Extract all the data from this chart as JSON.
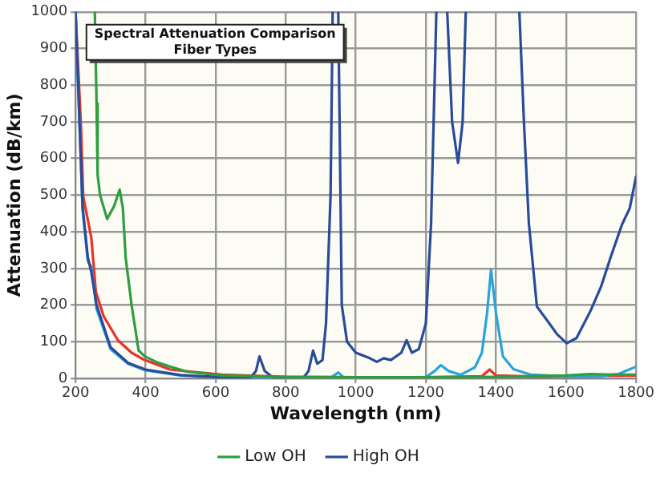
{
  "chart_data": {
    "type": "line",
    "title": "Spectral Attenuation Comparison",
    "subtitle": "Fiber Types",
    "xlabel": "Wavelength (nm)",
    "ylabel": "Attenuation (dB/km)",
    "xlim": [
      200,
      1800
    ],
    "xticks": [
      200,
      400,
      600,
      800,
      1000,
      1200,
      1400,
      1600,
      1800
    ],
    "ylim": [
      0,
      1000
    ],
    "yticks": [
      0,
      100,
      200,
      300,
      400,
      500,
      600,
      700,
      800,
      900,
      1000
    ],
    "grid": true,
    "legend": "bottom",
    "marker": "none",
    "line_style": "solid",
    "series": [
      {
        "name": "Low OH",
        "color": "#2e9e3e",
        "x": [
          255,
          260,
          263,
          270,
          290,
          310,
          326,
          335,
          343,
          360,
          380,
          398,
          430,
          470,
          520,
          618,
          800,
          1000,
          1200,
          1400,
          1600,
          1670,
          1750,
          1800
        ],
        "values": [
          1000,
          750,
          555,
          500,
          435,
          470,
          515,
          465,
          330,
          200,
          76,
          60,
          45,
          32,
          18,
          8,
          4,
          3,
          3,
          4,
          8,
          12,
          10,
          10
        ]
      },
      {
        "name": "High OH",
        "color": "#2a4a9a",
        "x": [
          200,
          220,
          235,
          245,
          260,
          300,
          350,
          400,
          500,
          600,
          700,
          715,
          725,
          740,
          760,
          800,
          850,
          865,
          878,
          890,
          905,
          915,
          928,
          934,
          942,
          950,
          960,
          975,
          1000,
          1040,
          1060,
          1080,
          1100,
          1130,
          1145,
          1160,
          1180,
          1200,
          1215,
          1230,
          1245,
          1261,
          1275,
          1292,
          1305,
          1314,
          1390,
          1467,
          1480,
          1494,
          1517,
          1548,
          1575,
          1602,
          1630,
          1670,
          1700,
          1728,
          1760,
          1782,
          1800
        ],
        "values": [
          1000,
          470,
          330,
          290,
          200,
          85,
          42,
          24,
          9,
          4,
          3,
          20,
          60,
          20,
          5,
          1,
          1,
          20,
          76,
          40,
          50,
          150,
          500,
          1000,
          null,
          1000,
          200,
          100,
          70,
          55,
          45,
          55,
          50,
          70,
          104,
          70,
          80,
          150,
          424,
          1000,
          null,
          1000,
          700,
          588,
          700,
          1000,
          null,
          1000,
          700,
          424,
          196,
          156,
          120,
          96,
          110,
          184,
          250,
          332,
          420,
          464,
          550
        ]
      },
      {
        "color": "#29a3dd",
        "x": [
          200,
          220,
          235,
          245,
          260,
          300,
          350,
          400,
          500,
          600,
          800,
          930,
          950,
          965,
          1000,
          1200,
          1225,
          1243,
          1265,
          1300,
          1340,
          1360,
          1375,
          1386,
          1400,
          1420,
          1450,
          1500,
          1600,
          1700,
          1750,
          1800
        ],
        "values": [
          1000,
          460,
          320,
          304,
          190,
          80,
          40,
          22,
          8,
          4,
          2,
          3,
          16,
          3,
          2,
          3,
          20,
          36,
          20,
          10,
          30,
          70,
          180,
          296,
          180,
          60,
          25,
          10,
          5,
          6,
          12,
          32
        ]
      },
      {
        "color": "#e8312a",
        "x": [
          200,
          215,
          222,
          231,
          245,
          258,
          280,
          321,
          360,
          393,
          470,
          618,
          800,
          1000,
          1200,
          1360,
          1382,
          1400,
          1500,
          1600,
          1800
        ],
        "values": [
          1000,
          700,
          496,
          452,
          384,
          236,
          170,
          104,
          70,
          52,
          24,
          10,
          4,
          3,
          3,
          6,
          24,
          8,
          5,
          6,
          8
        ]
      }
    ]
  }
}
